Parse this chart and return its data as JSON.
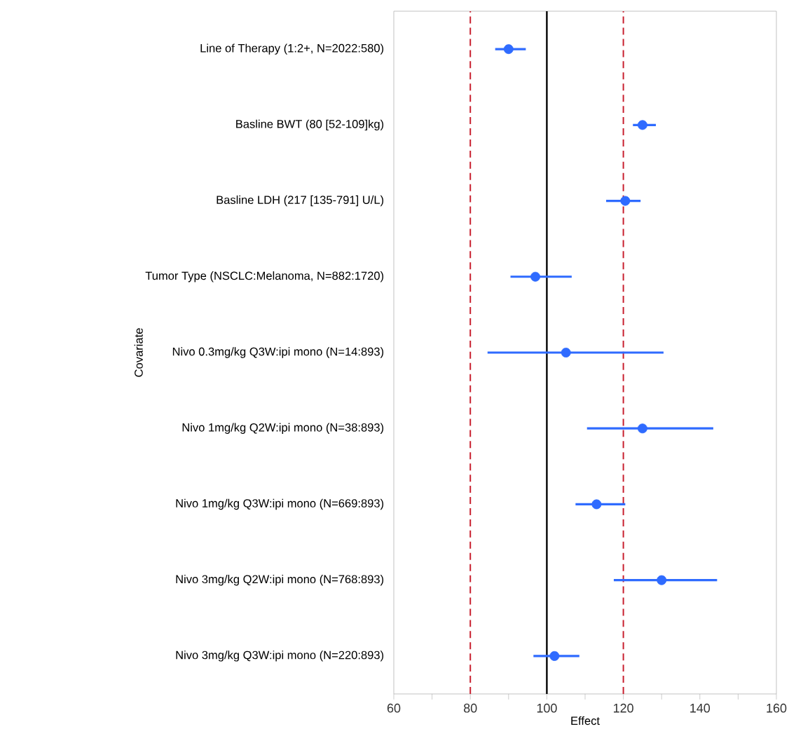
{
  "chart_data": {
    "type": "scatter",
    "orientation": "horizontal",
    "xlabel": "Effect",
    "ylabel": "Covariate",
    "categories": [
      "Line of Therapy (1:2+, N=2022:580)",
      "Basline BWT (80 [52-109]kg)",
      "Basline LDH (217 [135-791] U/L)",
      "Tumor Type (NSCLC:Melanoma, N=882:1720)",
      "Nivo 0.3mg/kg Q3W:ipi mono (N=14:893)",
      "Nivo 1mg/kg Q2W:ipi mono (N=38:893)",
      "Nivo 1mg/kg Q3W:ipi mono (N=669:893)",
      "Nivo 3mg/kg Q2W:ipi mono (N=768:893)",
      "Nivo 3mg/kg Q3W:ipi mono (N=220:893)"
    ],
    "values": [
      90,
      125,
      120.5,
      97,
      105,
      125,
      113,
      130,
      102
    ],
    "errors": [
      [
        86.5,
        94.5
      ],
      [
        122.5,
        128.5
      ],
      [
        115.5,
        124.5
      ],
      [
        90.5,
        106.5
      ],
      [
        84.5,
        130.5
      ],
      [
        110.5,
        143.5
      ],
      [
        107.5,
        120.5
      ],
      [
        117.5,
        144.5
      ],
      [
        96.5,
        108.5
      ]
    ],
    "color": "#2f6bff",
    "marker": "circle",
    "xlim": [
      60,
      160
    ],
    "xticks": [
      60,
      {
        "value": 70,
        "label": null
      },
      80,
      {
        "value": 90,
        "label": null
      },
      100,
      {
        "value": 110,
        "label": null
      },
      120,
      {
        "value": 130,
        "label": null
      },
      140,
      {
        "value": 150,
        "label": null
      },
      160
    ],
    "ref_lines": [
      {
        "axis": "x",
        "value": 80,
        "color": "#c8202f",
        "line_style": "dashed"
      },
      {
        "axis": "x",
        "value": 100,
        "color": "#000000",
        "line_style": "solid"
      },
      {
        "axis": "x",
        "value": 120,
        "color": "#c8202f",
        "line_style": "dashed"
      }
    ]
  }
}
